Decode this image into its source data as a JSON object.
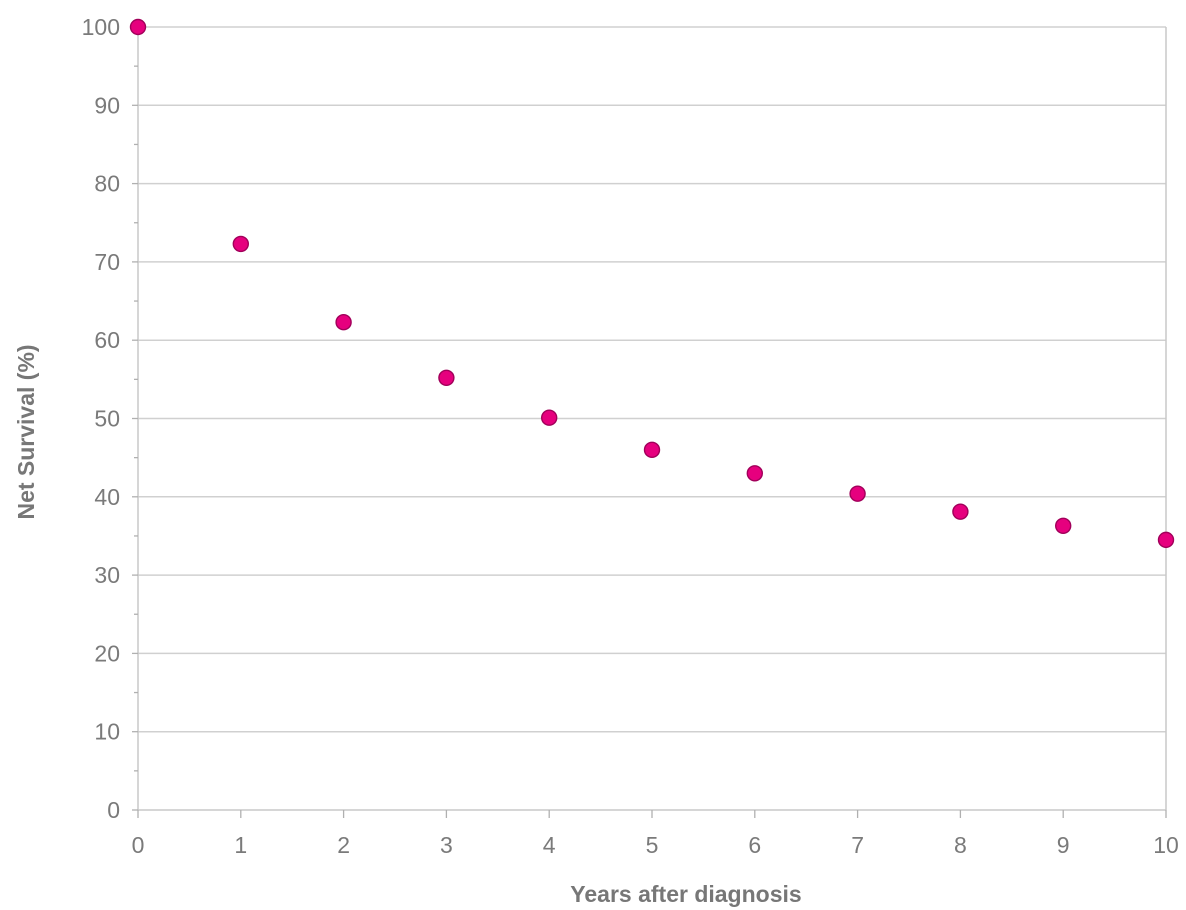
{
  "chart_data": {
    "type": "scatter",
    "title": "",
    "xlabel": "Years after diagnosis",
    "ylabel": "Net Survival (%)",
    "xlim": [
      0,
      10
    ],
    "ylim": [
      0,
      100
    ],
    "x_ticks": [
      0,
      1,
      2,
      3,
      4,
      5,
      6,
      7,
      8,
      9,
      10
    ],
    "y_ticks": [
      0,
      10,
      20,
      30,
      40,
      50,
      60,
      70,
      80,
      90,
      100
    ],
    "grid": "horizontal",
    "series": [
      {
        "color": "#e6007e",
        "x": [
          0,
          1,
          2,
          3,
          4,
          5,
          6,
          7,
          8,
          9,
          10
        ],
        "y": [
          100,
          72.3,
          62.3,
          55.2,
          50.1,
          46.0,
          43.0,
          40.4,
          38.1,
          36.3,
          34.5
        ]
      }
    ]
  }
}
